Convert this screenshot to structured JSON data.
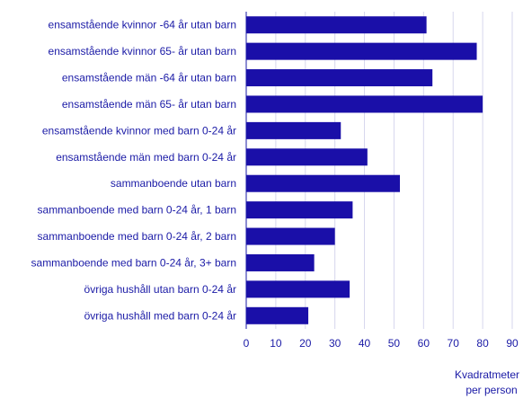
{
  "chart_data": {
    "type": "bar",
    "orientation": "horizontal",
    "categories": [
      "ensamstående kvinnor -64 år utan barn",
      "ensamstående kvinnor 65- år utan barn",
      "ensamstående män -64 år utan barn",
      "ensamstående män 65- år utan barn",
      "ensamstående kvinnor med barn 0-24 år",
      "ensamstående män med barn 0-24 år",
      "sammanboende utan barn",
      "sammanboende med barn 0-24 år, 1 barn",
      "sammanboende med barn 0-24 år, 2 barn",
      "sammanboende med barn 0-24 år, 3+  barn",
      "övriga hushåll utan barn 0-24 år",
      "övriga hushåll med barn 0-24 år"
    ],
    "values": [
      61,
      78,
      63,
      80,
      32,
      41,
      52,
      36,
      30,
      23,
      35,
      21
    ],
    "xlabel": [
      "Kvadratmeter",
      "per person"
    ],
    "xlim": [
      0,
      90
    ],
    "xticks": [
      0,
      10,
      20,
      30,
      40,
      50,
      60,
      70,
      80,
      90
    ],
    "grid": "vertical",
    "bar_color": "#1a0fa8",
    "text_color": "#1a1aa6",
    "grid_color": "#d6d6ee"
  }
}
